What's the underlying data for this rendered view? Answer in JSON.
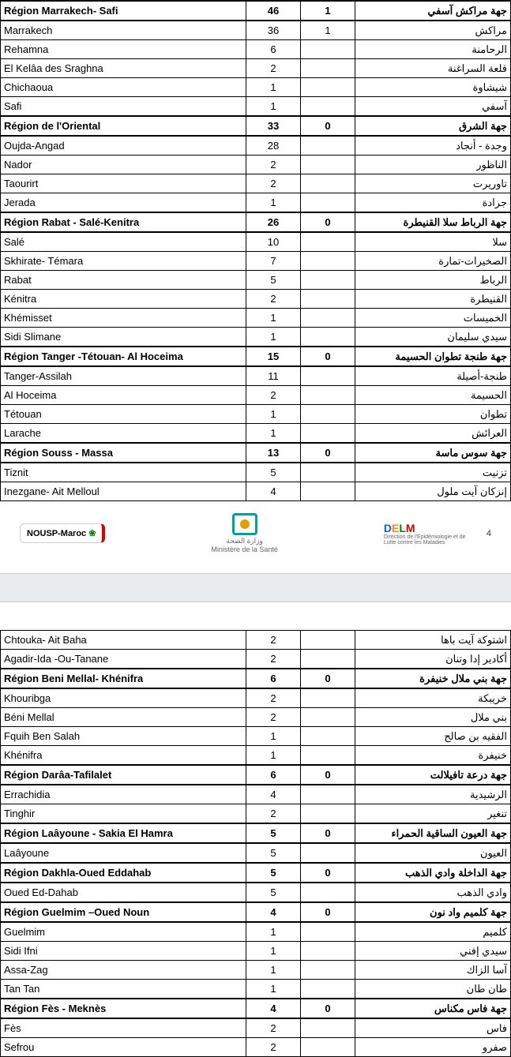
{
  "page_num": "4",
  "logos": {
    "left": "NOUSP-Maroc",
    "mid_line1": "وزارة الصحة",
    "mid_line2": "Ministère de la Santé",
    "right_sub": "Direction de l'Epidémiologie et de Lutte contre les Maladies"
  },
  "columns": [
    "fr",
    "n1",
    "n2",
    "ar"
  ],
  "rows_top": [
    {
      "region": true,
      "fr": "Région Marrakech- Safi",
      "n1": "46",
      "n2": "1",
      "ar": "جهة مراكش آسفي"
    },
    {
      "fr": "Marrakech",
      "n1": "36",
      "n2": "1",
      "ar": "مراكش"
    },
    {
      "fr": "Rehamna",
      "n1": "6",
      "n2": "",
      "ar": "الرحامنة"
    },
    {
      "fr": "El Kelâa des  Sraghna",
      "n1": "2",
      "n2": "",
      "ar": "قلعة السراغنة"
    },
    {
      "fr": "Chichaoua",
      "n1": "1",
      "n2": "",
      "ar": "شيشاوة"
    },
    {
      "fr": "Safi",
      "n1": "1",
      "n2": "",
      "ar": "آسفي"
    },
    {
      "region": true,
      "fr": "Région de l'Oriental",
      "n1": "33",
      "n2": "0",
      "ar": "جهة الشرق"
    },
    {
      "fr": "Oujda-Angad",
      "n1": "28",
      "n2": "",
      "ar": "وجدة - أنجاد"
    },
    {
      "fr": "Nador",
      "n1": "2",
      "n2": "",
      "ar": "الناظور"
    },
    {
      "fr": "Taourirt",
      "n1": "2",
      "n2": "",
      "ar": "تاوريرت"
    },
    {
      "fr": "Jerada",
      "n1": "1",
      "n2": "",
      "ar": "جرادة"
    },
    {
      "region": true,
      "fr": "Région Rabat - Salé-Kenitra",
      "n1": "26",
      "n2": "0",
      "ar": "جهة الرباط سلا القنيطرة"
    },
    {
      "fr": "Salé",
      "n1": "10",
      "n2": "",
      "ar": "سلا"
    },
    {
      "fr": "Skhirate- Témara",
      "n1": "7",
      "n2": "",
      "ar": "الصخيرات-تمارة"
    },
    {
      "fr": "Rabat",
      "n1": "5",
      "n2": "",
      "ar": "الرباط"
    },
    {
      "fr": "Kénitra",
      "n1": "2",
      "n2": "",
      "ar": "القنيطرة"
    },
    {
      "fr": "Khémisset",
      "n1": "1",
      "n2": "",
      "ar": "الخميسات"
    },
    {
      "fr": "Sidi Slimane",
      "n1": "1",
      "n2": "",
      "ar": "سيدي سليمان"
    },
    {
      "region": true,
      "fr": "Région Tanger -Tétouan- Al Hoceima",
      "n1": "15",
      "n2": "0",
      "ar": "جهة طنجة تطوان الحسيمة"
    },
    {
      "fr": "Tanger-Assilah",
      "n1": "11",
      "n2": "",
      "ar": "طنجة-أصيلة"
    },
    {
      "fr": "Al Hoceima",
      "n1": "2",
      "n2": "",
      "ar": "الحسيمة"
    },
    {
      "fr": "Tétouan",
      "n1": "1",
      "n2": "",
      "ar": "تطوان"
    },
    {
      "fr": "Larache",
      "n1": "1",
      "n2": "",
      "ar": "العرائش"
    },
    {
      "region": true,
      "fr": "Région Souss - Massa",
      "n1": "13",
      "n2": "0",
      "ar": "جهة سوس ماسة"
    },
    {
      "fr": "Tiznit",
      "n1": "5",
      "n2": "",
      "ar": "تزنيت"
    },
    {
      "fr": "Inezgane- Ait Melloul",
      "n1": "4",
      "n2": "",
      "ar": "إنزكان آيت ملول"
    }
  ],
  "rows_bottom": [
    {
      "fr": "Chtouka- Ait Baha",
      "n1": "2",
      "n2": "",
      "ar": "اشتوكة آيت باها"
    },
    {
      "fr": "Agadir-Ida -Ou-Tanane",
      "n1": "2",
      "n2": "",
      "ar": "أكادير إدا وتنان"
    },
    {
      "region": true,
      "fr": "Région Beni Mellal- Khénifra",
      "n1": "6",
      "n2": "0",
      "ar": "جهة بني ملال خنيفرة"
    },
    {
      "fr": "Khouribga",
      "n1": "2",
      "n2": "",
      "ar": "خريبكة"
    },
    {
      "fr": "Béni Mellal",
      "n1": "2",
      "n2": "",
      "ar": "بني ملال"
    },
    {
      "fr": "Fquih Ben Salah",
      "n1": "1",
      "n2": "",
      "ar": "الفقيه بن صالح"
    },
    {
      "fr": "Khénifra",
      "n1": "1",
      "n2": "",
      "ar": "خنيفرة"
    },
    {
      "region": true,
      "fr": "Région Darâa-Tafilalet",
      "n1": "6",
      "n2": "0",
      "ar": "جهة درعة تافيلالت"
    },
    {
      "fr": "Errachidia",
      "n1": "4",
      "n2": "",
      "ar": "الرشيدية"
    },
    {
      "fr": "Tinghir",
      "n1": "2",
      "n2": "",
      "ar": "تنغير"
    },
    {
      "region": true,
      "fr": "Région Laâyoune - Sakia El Hamra",
      "n1": "5",
      "n2": "0",
      "ar": "جهة العيون الساقية الحمراء"
    },
    {
      "fr": "Laâyoune",
      "n1": "5",
      "n2": "",
      "ar": "العيون"
    },
    {
      "region": true,
      "fr": "Région Dakhla-Oued Eddahab",
      "n1": "5",
      "n2": "0",
      "ar": "جهة الداخلة وادي الذهب"
    },
    {
      "fr": "Oued Ed-Dahab",
      "n1": "5",
      "n2": "",
      "ar": "وادي الذهب"
    },
    {
      "region": true,
      "fr": "Région Guelmim –Oued Noun",
      "n1": "4",
      "n2": "0",
      "ar": "جهة كلميم واد نون"
    },
    {
      "fr": "Guelmim",
      "n1": "1",
      "n2": "",
      "ar": "كلميم"
    },
    {
      "fr": "Sidi Ifni",
      "n1": "1",
      "n2": "",
      "ar": "سيدي إفني"
    },
    {
      "fr": "Assa-Zag",
      "n1": "1",
      "n2": "",
      "ar": "آسا الزاك"
    },
    {
      "fr": "Tan Tan",
      "n1": "1",
      "n2": "",
      "ar": "طان طان"
    },
    {
      "region": true,
      "fr": "Région Fès - Meknès",
      "n1": "4",
      "n2": "0",
      "ar": "جهة فاس مكناس"
    },
    {
      "fr": "Fès",
      "n1": "2",
      "n2": "",
      "ar": "فاس"
    },
    {
      "fr": "Sefrou",
      "n1": "2",
      "n2": "",
      "ar": "صفرو"
    }
  ]
}
